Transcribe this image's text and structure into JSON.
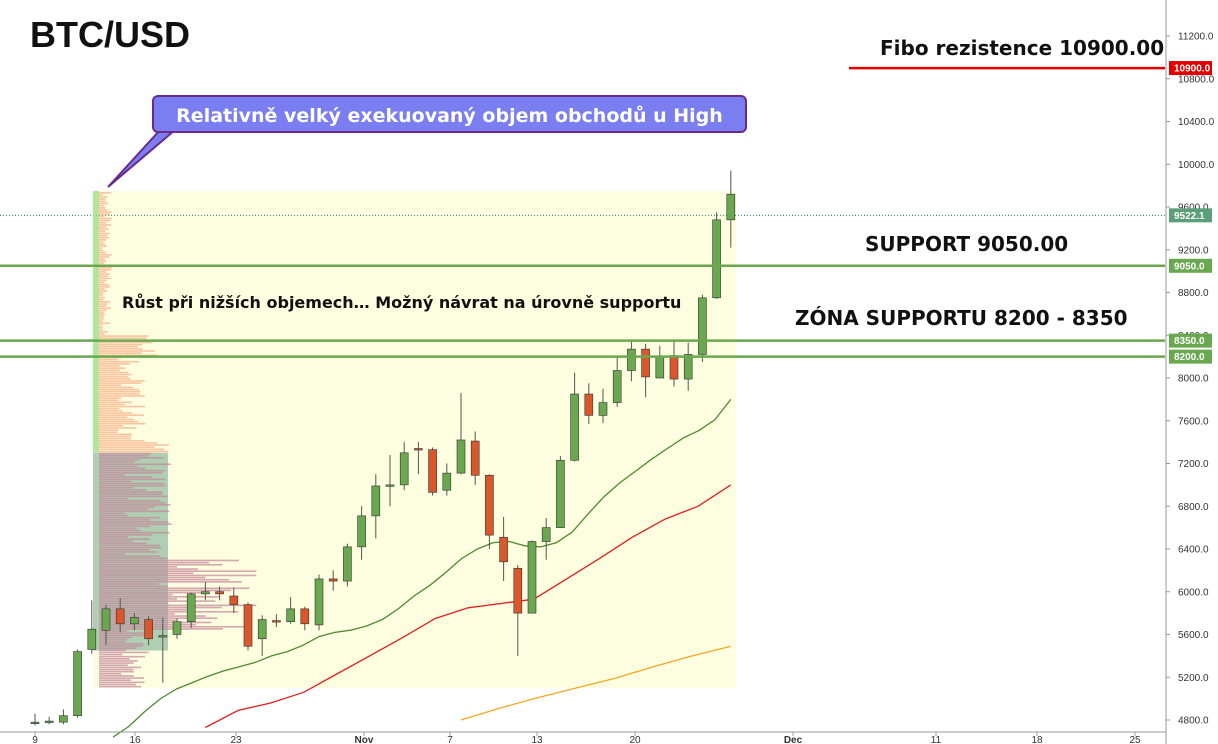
{
  "title": "BTC/USD",
  "callout_text": "Relativně velký exekuovaný objem obchodů u High",
  "note_text": "Růst při nižších objemech… Možný návrat na úrovně supportu",
  "labels": {
    "fibo": "Fibo rezistence 10900.00",
    "support": "SUPPORT 9050.00",
    "zone": "ZÓNA SUPPORTU 8200 - 8350"
  },
  "colors": {
    "up": "#6aa84f",
    "down": "#d9572b",
    "level": "#6aa84f",
    "resistance": "#e00000",
    "ma_short": "#4e8a2e",
    "ma_mid": "#e02020",
    "ma_long": "#f5a623",
    "profile_bg": "#fdfde0",
    "callout": "#7b7ef0"
  },
  "chart_data": {
    "type": "candlestick",
    "title": "BTC/USD",
    "ylim": [
      4700,
      11600
    ],
    "yticks": [
      4800,
      5200,
      5600,
      6000,
      6400,
      6800,
      7200,
      7600,
      8000,
      8400,
      8800,
      9200,
      9600,
      10000,
      10400,
      10800,
      11200
    ],
    "xticks": [
      "9",
      "16",
      "23",
      "Nov",
      "7",
      "13",
      "20",
      "Dec",
      "11",
      "18",
      "25"
    ],
    "price_labels": {
      "resistance": "10900.0",
      "last": "9522.1",
      "support": "9050.0",
      "zone_high": "8350.0",
      "zone_low": "8200.0"
    },
    "levels": {
      "resistance": 10900,
      "support": 9050,
      "zone_high": 8350,
      "zone_low": 8200,
      "last": 9522.1
    },
    "candles": [
      [
        4770,
        4780,
        4860,
        4750
      ],
      [
        4780,
        4790,
        4830,
        4760
      ],
      [
        4780,
        4840,
        4900,
        4760
      ],
      [
        4840,
        5440,
        5460,
        4820
      ],
      [
        5460,
        5650,
        5920,
        5420
      ],
      [
        5640,
        5840,
        5880,
        5500
      ],
      [
        5840,
        5700,
        5940,
        5620
      ],
      [
        5700,
        5760,
        5800,
        5640
      ],
      [
        5740,
        5560,
        5770,
        5500
      ],
      [
        5580,
        5590,
        5760,
        5150
      ],
      [
        5600,
        5720,
        5750,
        5560
      ],
      [
        5720,
        5980,
        5990,
        5660
      ],
      [
        5980,
        6000,
        6090,
        5920
      ],
      [
        6000,
        5980,
        6050,
        5920
      ],
      [
        5960,
        5880,
        6040,
        5800
      ],
      [
        5880,
        5490,
        5900,
        5450
      ],
      [
        5560,
        5740,
        5780,
        5400
      ],
      [
        5730,
        5720,
        5790,
        5670
      ],
      [
        5720,
        5840,
        5950,
        5700
      ],
      [
        5840,
        5700,
        5860,
        5640
      ],
      [
        5690,
        6120,
        6160,
        5640
      ],
      [
        6120,
        6100,
        6200,
        6010
      ],
      [
        6100,
        6420,
        6450,
        6050
      ],
      [
        6420,
        6710,
        6800,
        6300
      ],
      [
        6710,
        6990,
        7100,
        6500
      ],
      [
        6990,
        7000,
        7280,
        6800
      ],
      [
        7000,
        7300,
        7400,
        6950
      ],
      [
        7340,
        7330,
        7400,
        7100
      ],
      [
        7330,
        6930,
        7350,
        6900
      ],
      [
        6950,
        7110,
        7200,
        6900
      ],
      [
        7110,
        7420,
        7860,
        7100
      ],
      [
        7410,
        7090,
        7500,
        7000
      ],
      [
        7090,
        6530,
        7100,
        6400
      ],
      [
        6510,
        6280,
        6700,
        6100
      ],
      [
        6220,
        5800,
        6250,
        5400
      ],
      [
        5800,
        6470,
        6480,
        5800
      ],
      [
        6470,
        6600,
        6690,
        6300
      ],
      [
        6600,
        7230,
        7270,
        6610
      ],
      [
        7230,
        7850,
        8050,
        7220
      ],
      [
        7850,
        7650,
        7950,
        7570
      ],
      [
        7650,
        7770,
        7900,
        7580
      ],
      [
        7770,
        8070,
        8200,
        7730
      ],
      [
        8070,
        8270,
        8350,
        7970
      ],
      [
        8270,
        8010,
        8320,
        7820
      ],
      [
        8000,
        8200,
        8300,
        8000
      ],
      [
        8210,
        7990,
        8350,
        7920
      ],
      [
        7990,
        8220,
        8330,
        7880
      ],
      [
        8220,
        8750,
        8780,
        8150
      ],
      [
        8750,
        9480,
        9550,
        8740
      ],
      [
        9480,
        9720,
        9940,
        9220
      ]
    ],
    "ma_short": [
      4640,
      4740,
      4880,
      5000,
      5090,
      5150,
      5210,
      5260,
      5300,
      5340,
      5400,
      5440,
      5500,
      5580,
      5620,
      5640,
      5680,
      5740,
      5840,
      5960,
      6060,
      6180,
      6310,
      6400,
      6460,
      6470,
      6430,
      6420,
      6460,
      6560,
      6730,
      6890,
      7020,
      7130,
      7240,
      7340,
      7440,
      7510,
      7610,
      7800
    ],
    "ma_mid": [
      4730,
      4890,
      4960,
      5060,
      5230,
      5400,
      5570,
      5750,
      5850,
      5890,
      5930,
      6120,
      6310,
      6510,
      6680,
      6800,
      7000
    ],
    "ma_long": [
      4800,
      4910,
      5010,
      5100,
      5190,
      5300,
      5400,
      5490
    ]
  }
}
